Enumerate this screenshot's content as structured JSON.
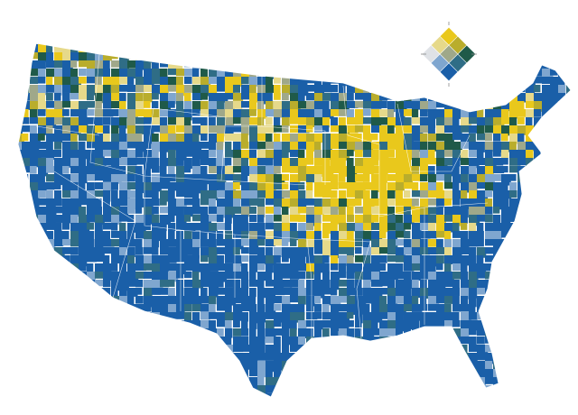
{
  "legend": {
    "colors": [
      [
        "#e9c81c",
        "#b9ad2c",
        "#1f5a49"
      ],
      [
        "#e6d98a",
        "#9fa88a",
        "#2f6d86"
      ],
      [
        "#dfe2e6",
        "#7fa6cf",
        "#1a5fa8"
      ]
    ]
  }
}
